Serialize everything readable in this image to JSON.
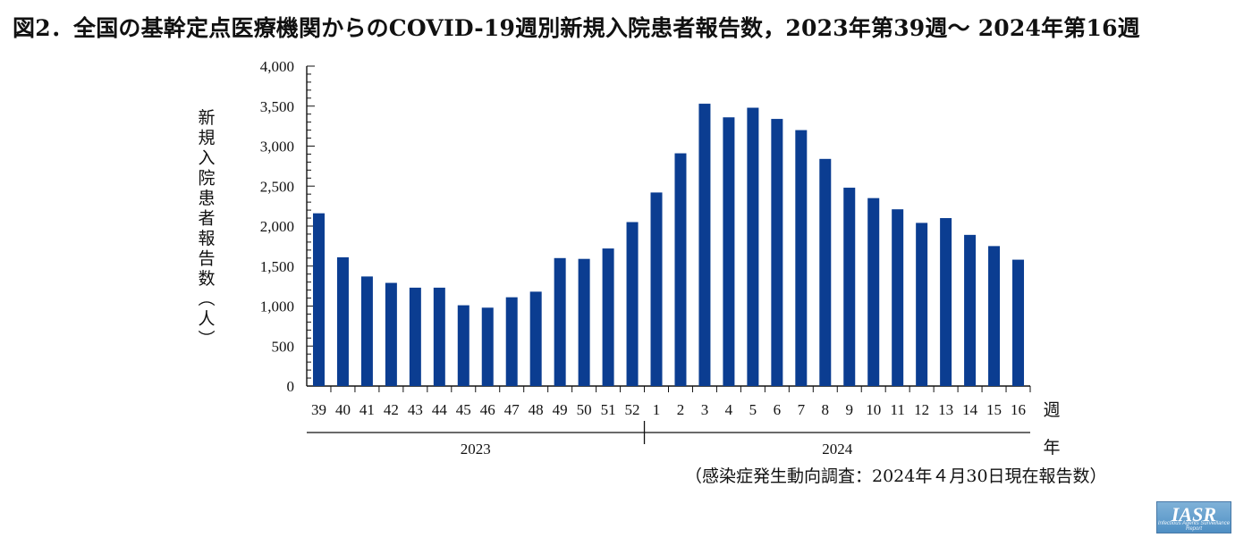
{
  "title": "図2．全国の基幹定点医療機関からのCOVID-19週別新規入院患者報告数，2023年第39週～ 2024年第16週",
  "note": "（感染症発生動向調査：2024年４月30日現在報告数）",
  "logo": {
    "text": "IASR",
    "subtext": "Infectious Agents Surveillance Report"
  },
  "chart_data": {
    "type": "bar",
    "title": "図2．全国の基幹定点医療機関からのCOVID-19週別新規入院患者報告数，2023年第39週～ 2024年第16週",
    "ylabel": "新規入院患者報告数（人）",
    "xlabel": "週",
    "year_axis_label": "年",
    "ylim": [
      0,
      4000
    ],
    "yticks": [
      0,
      500,
      1000,
      1500,
      2000,
      2500,
      3000,
      3500,
      4000
    ],
    "ytick_labels": [
      "0",
      "500",
      "1,000",
      "1,500",
      "2,000",
      "2,500",
      "3,000",
      "3,500",
      "4,000"
    ],
    "categories": [
      "39",
      "40",
      "41",
      "42",
      "43",
      "44",
      "45",
      "46",
      "47",
      "48",
      "49",
      "50",
      "51",
      "52",
      "1",
      "2",
      "3",
      "4",
      "5",
      "6",
      "7",
      "8",
      "9",
      "10",
      "11",
      "12",
      "13",
      "14",
      "15",
      "16"
    ],
    "values": [
      2160,
      1610,
      1370,
      1290,
      1230,
      1230,
      1010,
      980,
      1110,
      1180,
      1600,
      1590,
      1720,
      2050,
      2420,
      2910,
      3530,
      3360,
      3480,
      3340,
      3200,
      2840,
      2480,
      2350,
      2210,
      2040,
      2100,
      1890,
      1750,
      1580
    ],
    "year_groups": [
      {
        "label": "2023",
        "count": 14
      },
      {
        "label": "2024",
        "count": 16
      }
    ],
    "bar_color": "#0b3d91",
    "grid": false
  }
}
